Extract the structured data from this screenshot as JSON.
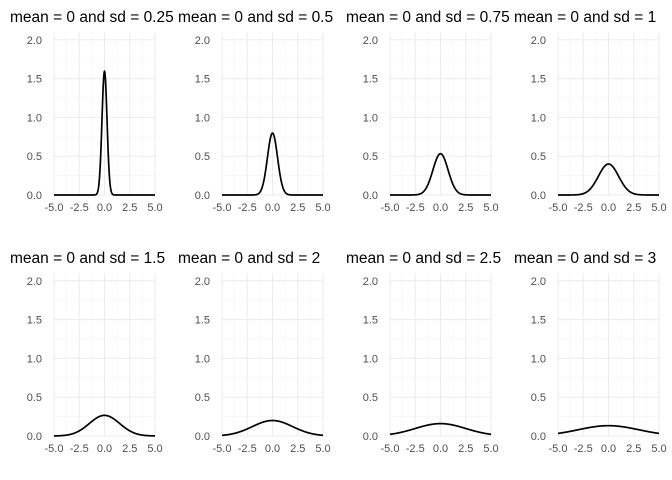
{
  "chart_data": [
    {
      "type": "line",
      "title": "mean = 0 and sd = 0.25",
      "mean": 0,
      "sd": 0.25,
      "xlim": [
        -5,
        5
      ],
      "ylim": [
        0,
        2.1
      ],
      "x_ticks": [
        "-5.0",
        "-2.5",
        "0.0",
        "2.5",
        "5.0"
      ],
      "y_ticks": [
        "0.0",
        "0.5",
        "1.0",
        "1.5",
        "2.0"
      ],
      "x_tick_values": [
        -5,
        -2.5,
        0,
        2.5,
        5
      ],
      "y_tick_values": [
        0,
        0.5,
        1,
        1.5,
        2
      ],
      "peak_density": 1.6,
      "grid": true
    },
    {
      "type": "line",
      "title": "mean = 0 and sd = 0.5",
      "mean": 0,
      "sd": 0.5,
      "xlim": [
        -5,
        5
      ],
      "ylim": [
        0,
        2.1
      ],
      "x_ticks": [
        "-5.0",
        "-2.5",
        "0.0",
        "2.5",
        "5.0"
      ],
      "y_ticks": [
        "0.0",
        "0.5",
        "1.0",
        "1.5",
        "2.0"
      ],
      "x_tick_values": [
        -5,
        -2.5,
        0,
        2.5,
        5
      ],
      "y_tick_values": [
        0,
        0.5,
        1,
        1.5,
        2
      ],
      "peak_density": 0.8,
      "grid": true
    },
    {
      "type": "line",
      "title": "mean = 0 and sd = 0.75",
      "mean": 0,
      "sd": 0.75,
      "xlim": [
        -5,
        5
      ],
      "ylim": [
        0,
        2.1
      ],
      "x_ticks": [
        "-5.0",
        "-2.5",
        "0.0",
        "2.5",
        "5.0"
      ],
      "y_ticks": [
        "0.0",
        "0.5",
        "1.0",
        "1.5",
        "2.0"
      ],
      "x_tick_values": [
        -5,
        -2.5,
        0,
        2.5,
        5
      ],
      "y_tick_values": [
        0,
        0.5,
        1,
        1.5,
        2
      ],
      "peak_density": 0.53,
      "grid": true
    },
    {
      "type": "line",
      "title": "mean = 0 and sd = 1",
      "mean": 0,
      "sd": 1,
      "xlim": [
        -5,
        5
      ],
      "ylim": [
        0,
        2.1
      ],
      "x_ticks": [
        "-5.0",
        "-2.5",
        "0.0",
        "2.5",
        "5.0"
      ],
      "y_ticks": [
        "0.0",
        "0.5",
        "1.0",
        "1.5",
        "2.0"
      ],
      "x_tick_values": [
        -5,
        -2.5,
        0,
        2.5,
        5
      ],
      "y_tick_values": [
        0,
        0.5,
        1,
        1.5,
        2
      ],
      "peak_density": 0.4,
      "grid": true
    },
    {
      "type": "line",
      "title": "mean = 0 and sd = 1.5",
      "mean": 0,
      "sd": 1.5,
      "xlim": [
        -5,
        5
      ],
      "ylim": [
        0,
        2.1
      ],
      "x_ticks": [
        "-5.0",
        "-2.5",
        "0.0",
        "2.5",
        "5.0"
      ],
      "y_ticks": [
        "0.0",
        "0.5",
        "1.0",
        "1.5",
        "2.0"
      ],
      "x_tick_values": [
        -5,
        -2.5,
        0,
        2.5,
        5
      ],
      "y_tick_values": [
        0,
        0.5,
        1,
        1.5,
        2
      ],
      "peak_density": 0.27,
      "grid": true
    },
    {
      "type": "line",
      "title": "mean = 0 and sd = 2",
      "mean": 0,
      "sd": 2,
      "xlim": [
        -5,
        5
      ],
      "ylim": [
        0,
        2.1
      ],
      "x_ticks": [
        "-5.0",
        "-2.5",
        "0.0",
        "2.5",
        "5.0"
      ],
      "y_ticks": [
        "0.0",
        "0.5",
        "1.0",
        "1.5",
        "2.0"
      ],
      "x_tick_values": [
        -5,
        -2.5,
        0,
        2.5,
        5
      ],
      "y_tick_values": [
        0,
        0.5,
        1,
        1.5,
        2
      ],
      "peak_density": 0.2,
      "grid": true
    },
    {
      "type": "line",
      "title": "mean = 0 and sd = 2.5",
      "mean": 0,
      "sd": 2.5,
      "xlim": [
        -5,
        5
      ],
      "ylim": [
        0,
        2.1
      ],
      "x_ticks": [
        "-5.0",
        "-2.5",
        "0.0",
        "2.5",
        "5.0"
      ],
      "y_ticks": [
        "0.0",
        "0.5",
        "1.0",
        "1.5",
        "2.0"
      ],
      "x_tick_values": [
        -5,
        -2.5,
        0,
        2.5,
        5
      ],
      "y_tick_values": [
        0,
        0.5,
        1,
        1.5,
        2
      ],
      "peak_density": 0.16,
      "grid": true
    },
    {
      "type": "line",
      "title": "mean = 0 and sd = 3",
      "mean": 0,
      "sd": 3,
      "xlim": [
        -5,
        5
      ],
      "ylim": [
        0,
        2.1
      ],
      "x_ticks": [
        "-5.0",
        "-2.5",
        "0.0",
        "2.5",
        "5.0"
      ],
      "y_ticks": [
        "0.0",
        "0.5",
        "1.0",
        "1.5",
        "2.0"
      ],
      "x_tick_values": [
        -5,
        -2.5,
        0,
        2.5,
        5
      ],
      "y_tick_values": [
        0,
        0.5,
        1,
        1.5,
        2
      ],
      "peak_density": 0.13,
      "grid": true
    }
  ],
  "colors": {
    "curve": "#000000",
    "grid_major": "#ebebeb",
    "grid_minor": "#f4f4f4",
    "tick_text": "#4d4d4d",
    "background": "#ffffff"
  }
}
